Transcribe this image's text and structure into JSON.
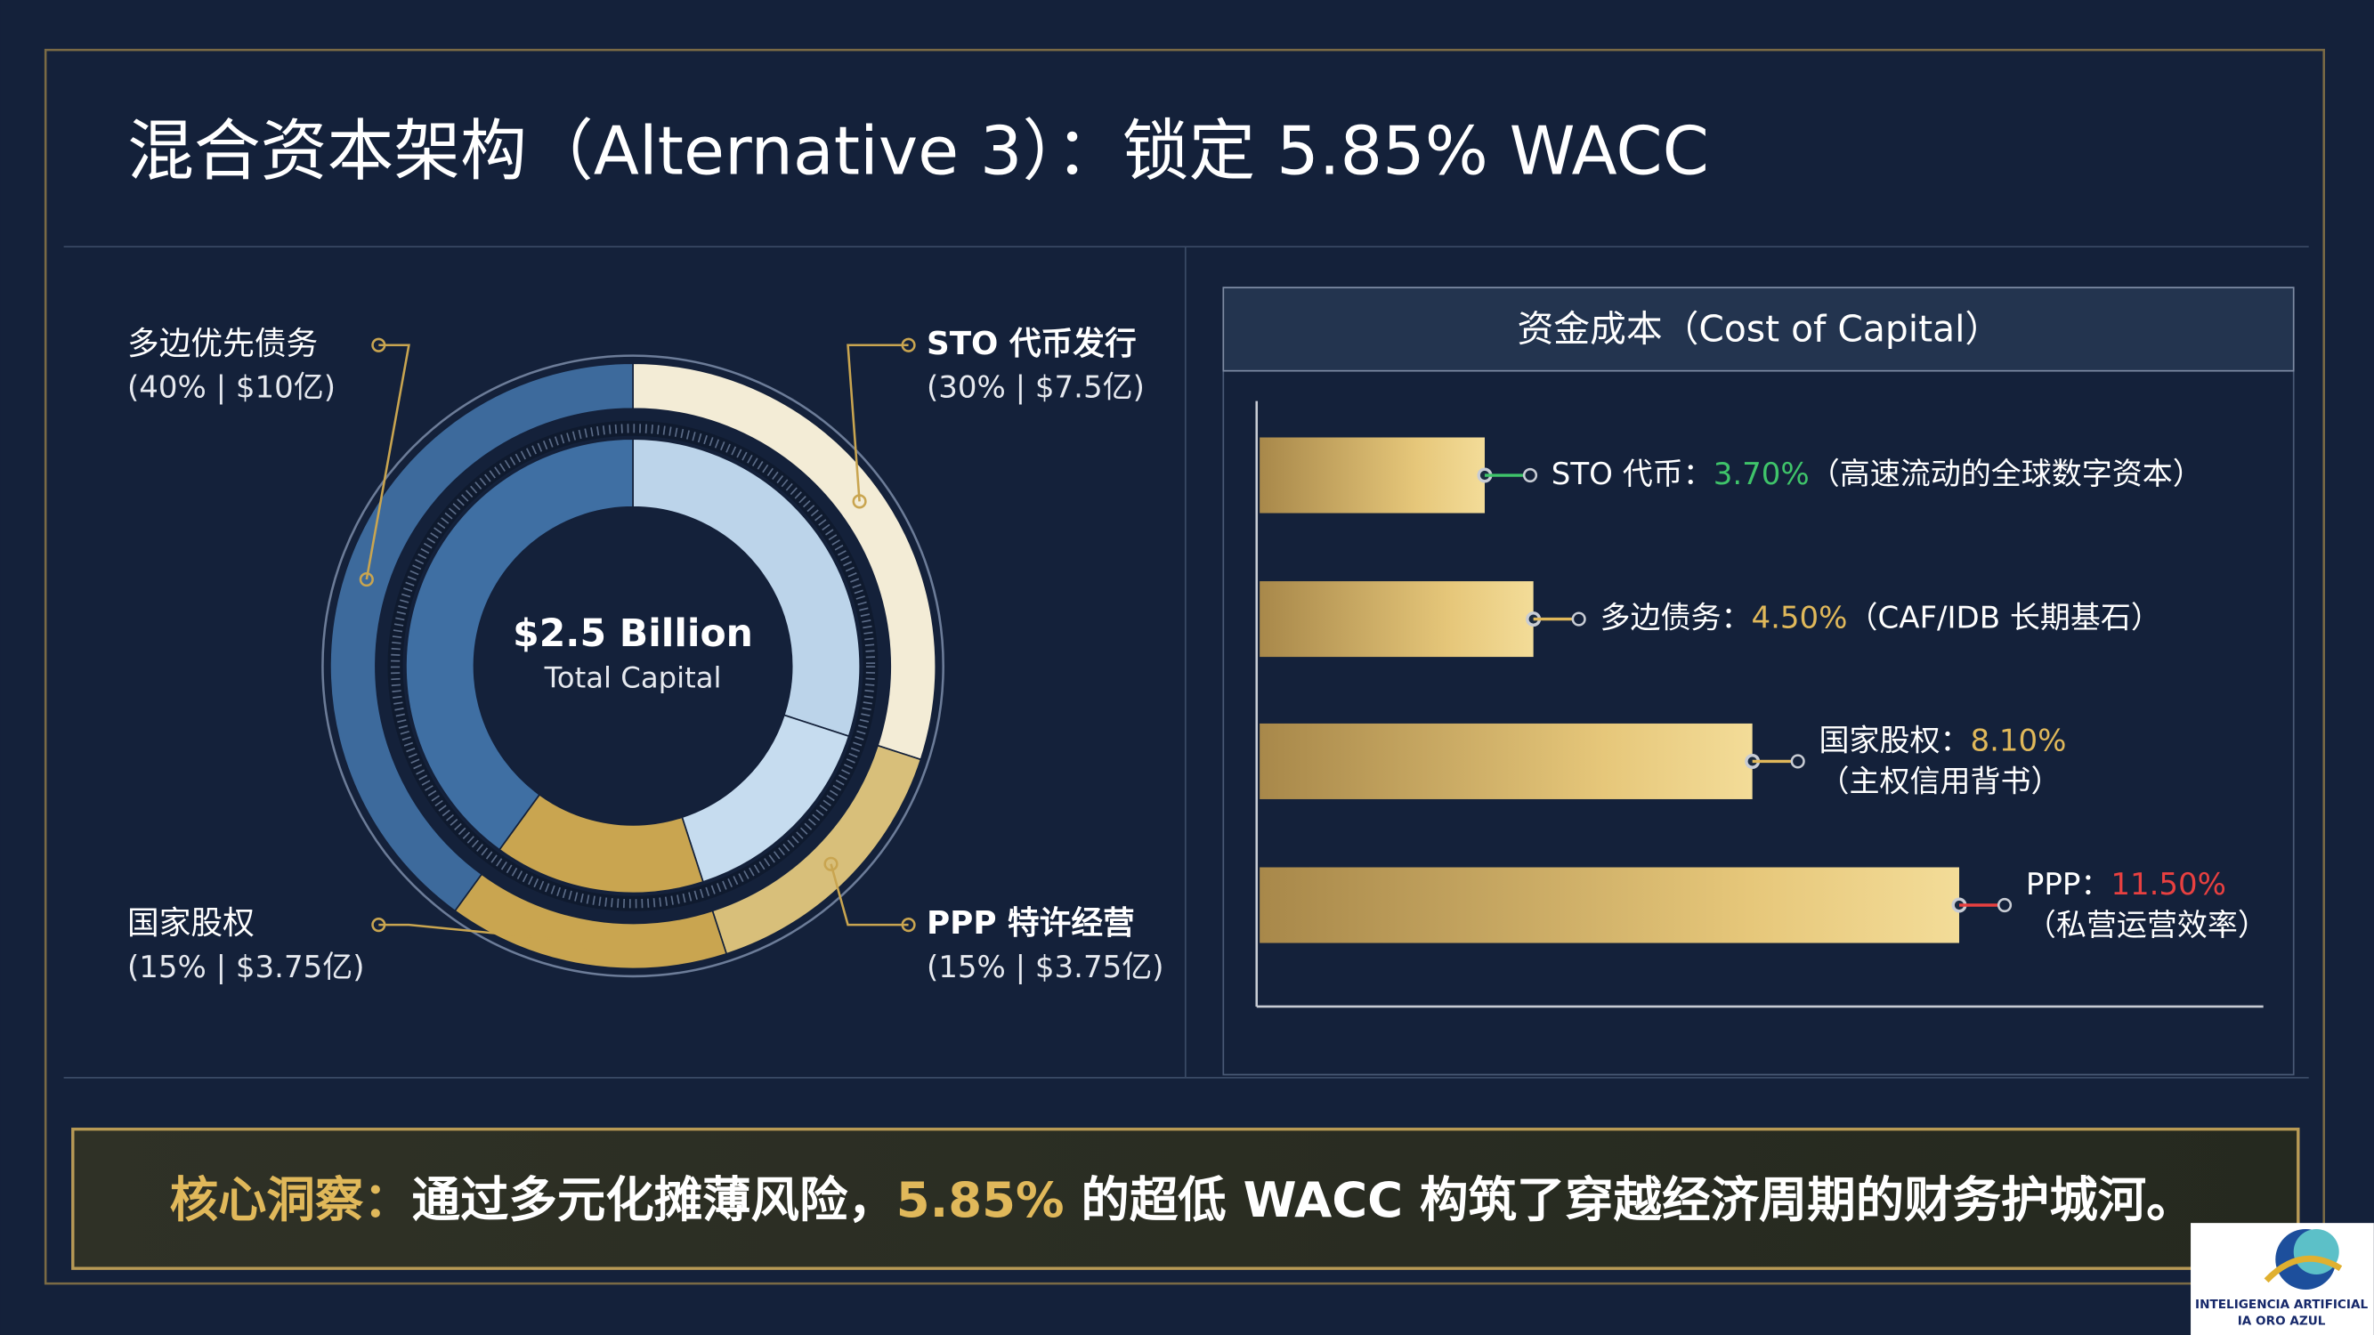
{
  "header": {
    "title": "混合资本架构（Alternative 3）：锁定 5.85% WACC"
  },
  "chart_data": [
    {
      "type": "donut",
      "center_label": "$2.5 Billion",
      "center_sublabel": "Total Capital",
      "categories": [
        "STO 代币发行",
        "PPP 特许经营",
        "国家股权",
        "多边优先债务"
      ],
      "values": [
        30,
        15,
        15,
        40
      ],
      "value_labels": [
        "(30% | $7.5亿)",
        "(15% | $3.75亿)",
        "(15% | $3.75亿)",
        "(40% | $10亿)"
      ],
      "colors": [
        "#f3ecd6",
        "#d8bf7a",
        "#c9a550",
        "#3d6a9c"
      ],
      "inner_colors": [
        "#bcd4ea",
        "#c6dcef",
        "#c9a550",
        "#3f6fa3"
      ]
    },
    {
      "type": "bar",
      "orientation": "horizontal",
      "title": "资金成本（Cost of Capital）",
      "categories": [
        "STO 代币：",
        "多边债务：",
        "国家股权：",
        "PPP："
      ],
      "values": [
        3.7,
        4.5,
        8.1,
        11.5
      ],
      "value_labels": [
        "3.70%",
        "4.50%",
        "8.10%",
        "11.50%"
      ],
      "notes": [
        "（高速流动的全球数字资本）",
        "（CAF/IDB 长期基石）",
        "（主权信用背书）",
        "（私营运营效率）"
      ],
      "value_label_colors": [
        "#3fc46a",
        "#e0b85a",
        "#e0b85a",
        "#e84040"
      ],
      "color": "#d9b65e",
      "xlim": [
        0,
        16.5
      ]
    }
  ],
  "insight": {
    "segments": [
      {
        "text": "核心洞察：",
        "color": "#e0b85a"
      },
      {
        "text": "通过多元化摊薄风险，",
        "color": "#ffffff"
      },
      {
        "text": "5.85%",
        "color": "#e0b85a"
      },
      {
        "text": " 的超低 WACC 构筑了穿越经济周期的财务护城河。",
        "color": "#ffffff"
      }
    ]
  },
  "logo": {
    "line1": "INTELIGENCIA ARTIFICIAL",
    "line2": "IA ORO AZUL"
  }
}
